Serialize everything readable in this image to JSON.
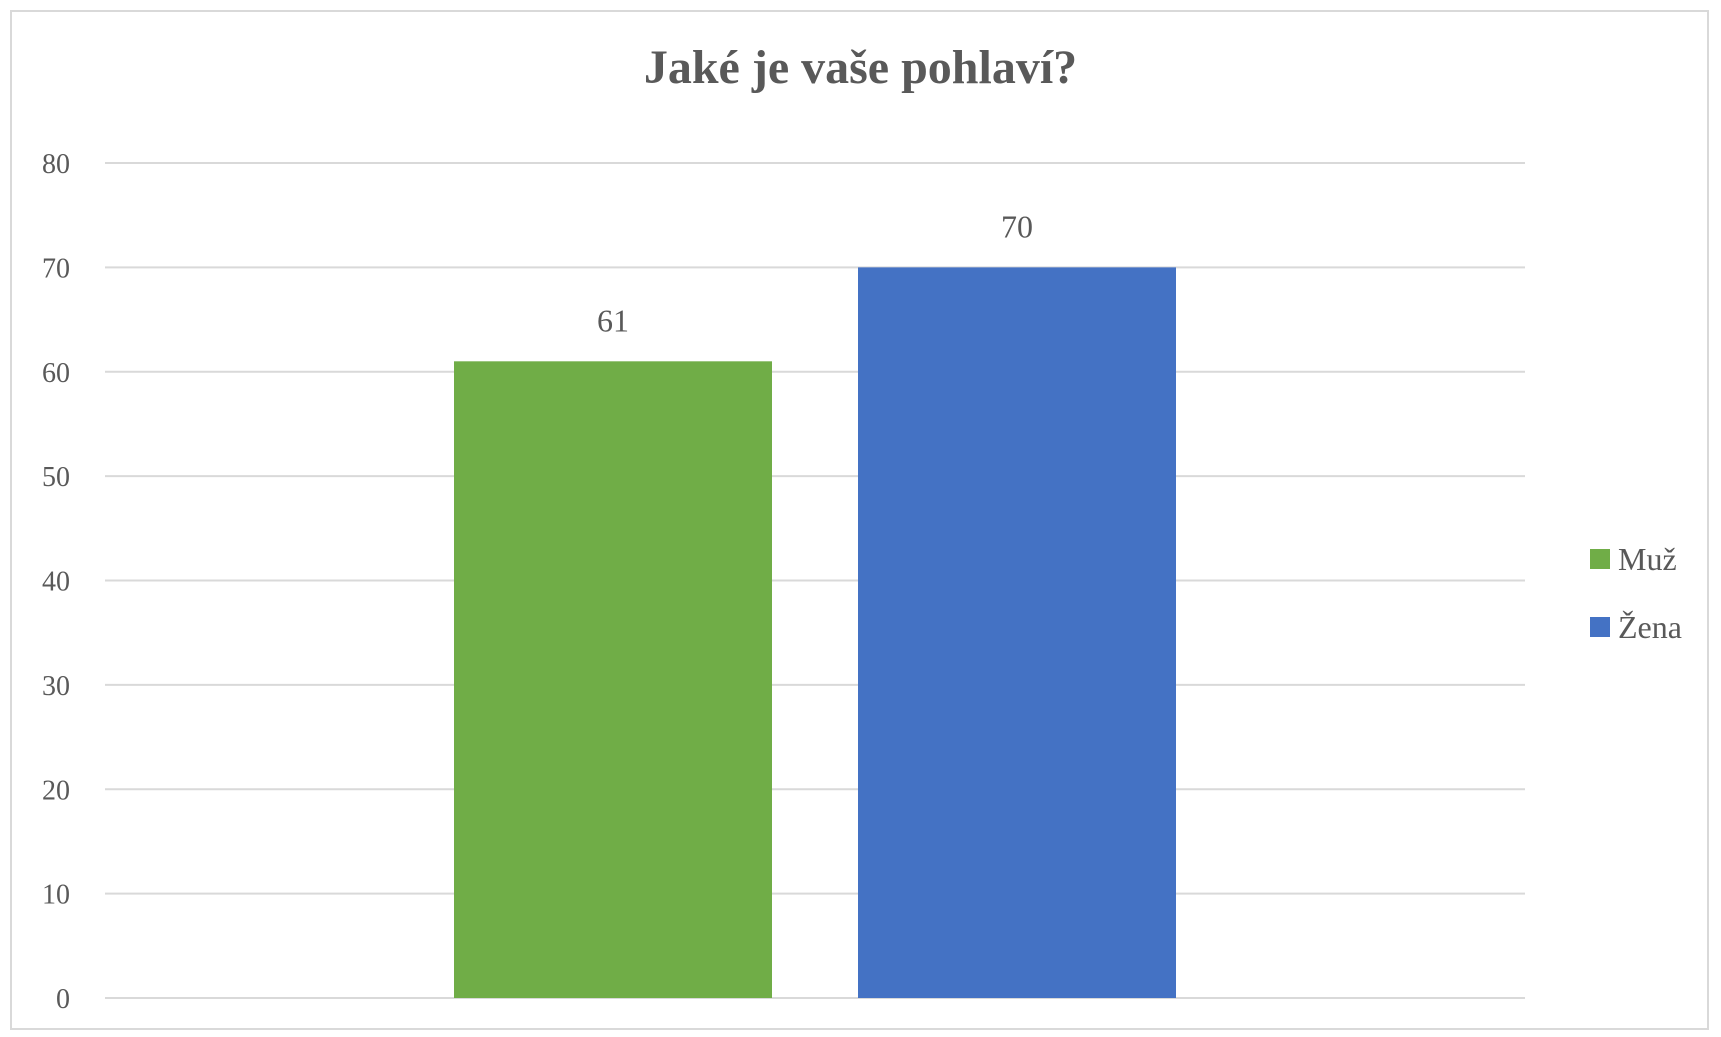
{
  "chart_data": {
    "type": "bar",
    "title": "Jaké je vaše pohlaví?",
    "xlabel": "",
    "ylabel": "",
    "ylim": [
      0,
      80
    ],
    "yticks": [
      0,
      10,
      20,
      30,
      40,
      50,
      60,
      70,
      80
    ],
    "grid": true,
    "legend_position": "right",
    "series": [
      {
        "name": "Muž",
        "values": [
          61
        ],
        "color": "#70AD47"
      },
      {
        "name": "Žena",
        "values": [
          70
        ],
        "color": "#4472C4"
      }
    ],
    "data_labels": [
      "61",
      "70"
    ]
  }
}
